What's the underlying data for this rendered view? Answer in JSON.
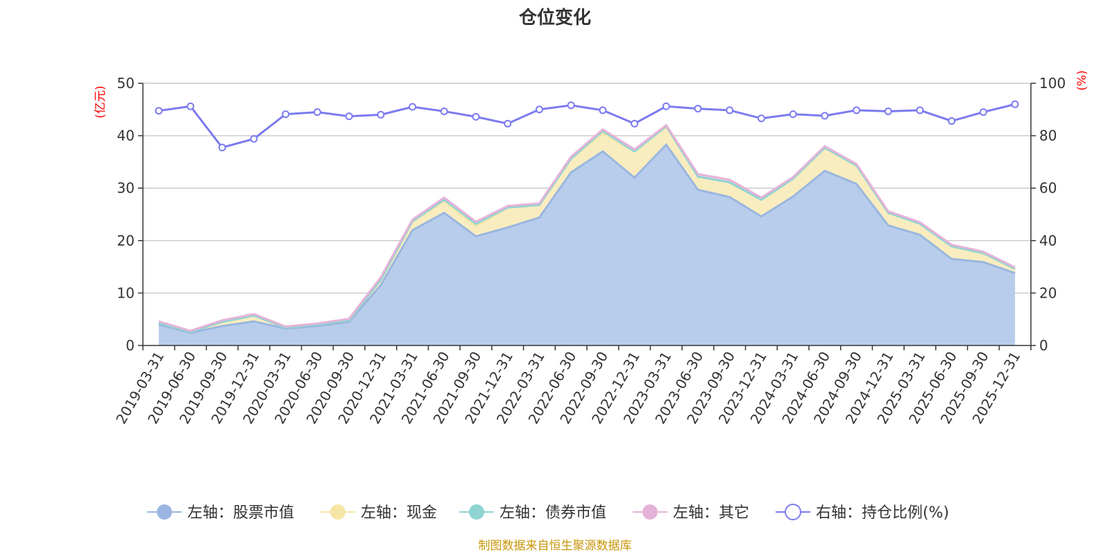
{
  "chart_data": {
    "type": "area",
    "title": "仓位变化",
    "left_axis": {
      "unit": "(亿元)",
      "ticks": [
        "0",
        "10",
        "20",
        "30",
        "40",
        "50"
      ],
      "range": [
        0,
        50
      ]
    },
    "right_axis": {
      "unit": "(%)",
      "ticks": [
        "0",
        "20",
        "40",
        "60",
        "80",
        "100"
      ],
      "range": [
        0,
        100
      ]
    },
    "categories": [
      "2019-03-31",
      "2019-06-30",
      "2019-09-30",
      "2019-12-31",
      "2020-03-31",
      "2020-06-30",
      "2020-09-30",
      "2020-12-31",
      "2021-03-31",
      "2021-06-30",
      "2021-09-30",
      "2021-12-31",
      "2022-03-31",
      "2022-06-30",
      "2022-09-30",
      "2022-12-31",
      "2023-03-31",
      "2023-06-30",
      "2023-09-30",
      "2023-12-31",
      "2024-03-31",
      "2024-06-30",
      "2024-09-30",
      "2024-12-31",
      "2025-03-31",
      "2025-06-30",
      "2025-09-30",
      "2025-12-31"
    ],
    "series": [
      {
        "name": "左轴：股票市值",
        "axis": "left",
        "stack": true,
        "color": "#9ab6e0",
        "fill": "#b8cdeb",
        "values": [
          4.0,
          2.4,
          3.7,
          4.6,
          3.2,
          3.7,
          4.5,
          11.5,
          22.0,
          25.3,
          20.8,
          22.5,
          24.4,
          33.0,
          37.0,
          32.0,
          38.3,
          29.7,
          28.3,
          24.6,
          28.4,
          33.3,
          30.8,
          22.9,
          21.1,
          16.5,
          15.9,
          13.8
        ]
      },
      {
        "name": "左轴：现金",
        "axis": "left",
        "stack": true,
        "color": "#f5e6a8",
        "fill": "#f9edbf",
        "values": [
          0.3,
          0.2,
          0.8,
          1.1,
          0.2,
          0.3,
          0.3,
          1.0,
          1.6,
          2.2,
          1.9,
          3.8,
          2.4,
          2.6,
          3.4,
          5.0,
          3.5,
          2.5,
          2.8,
          3.2,
          3.4,
          4.4,
          3.5,
          2.4,
          2.1,
          2.4,
          1.7,
          0.8
        ]
      },
      {
        "name": "左轴：债券市值",
        "axis": "left",
        "stack": true,
        "color": "#8fd3d3",
        "fill": "#8fd3d3",
        "values": [
          0,
          0,
          0,
          0,
          0,
          0,
          0,
          0,
          0.1,
          0.3,
          0.5,
          0,
          0,
          0,
          0.5,
          0,
          0,
          0,
          0,
          0,
          0,
          0,
          0,
          0,
          0,
          0,
          0,
          0
        ]
      },
      {
        "name": "左轴：其它",
        "axis": "left",
        "stack": true,
        "color": "#e6b3d8",
        "fill": "#f0cfe5",
        "values": [
          0.3,
          0.2,
          0.3,
          0.3,
          0.2,
          0.2,
          0.3,
          0.5,
          0.3,
          0.4,
          0.4,
          0.3,
          0.3,
          0.4,
          0.3,
          0.4,
          0.2,
          0.5,
          0.5,
          0.4,
          0.3,
          0.3,
          0.3,
          0.3,
          0.3,
          0.3,
          0.3,
          0.3
        ]
      },
      {
        "name": "右轴：持仓比例(%)",
        "axis": "right",
        "type": "line",
        "color": "#7b7bf0",
        "values": [
          89.5,
          91.2,
          75.5,
          78.8,
          88.2,
          89.0,
          87.4,
          88.0,
          91.0,
          89.3,
          87.2,
          84.6,
          90.0,
          91.6,
          89.7,
          84.6,
          91.2,
          90.3,
          89.7,
          86.6,
          88.2,
          87.6,
          89.7,
          89.3,
          89.7,
          85.6,
          89.0,
          92.0
        ]
      }
    ],
    "legend_position": "bottom",
    "grid": true
  },
  "source_note": "制图数据来自恒生聚源数据库"
}
